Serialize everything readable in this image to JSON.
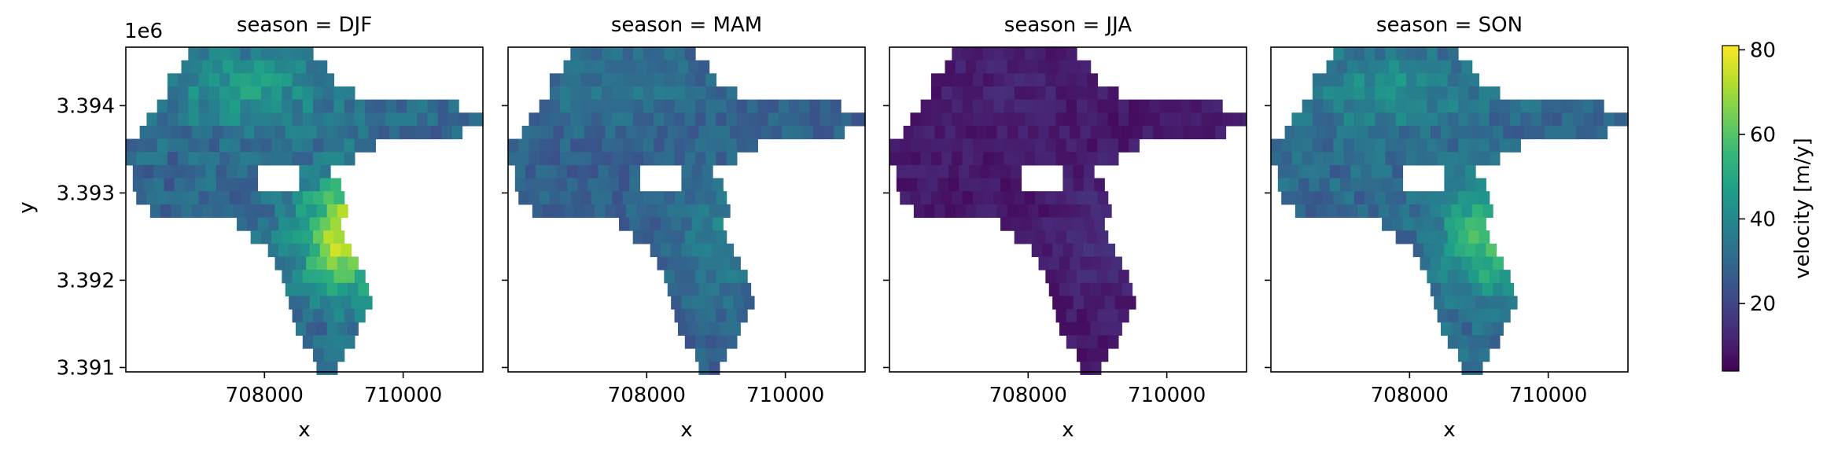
{
  "chart_data": {
    "type": "heatmap",
    "facet_variable": "season",
    "panel_titles": [
      "season = DJF",
      "season = MAM",
      "season = JJA",
      "season = SON"
    ],
    "xlabel": "x",
    "ylabel": "y",
    "x_ticks": [
      "708000",
      "710000"
    ],
    "x_tick_values": [
      708000,
      710000
    ],
    "y_ticks": [
      "3.391",
      "3.392",
      "3.393",
      "3.394"
    ],
    "y_tick_values": [
      3.391,
      3.392,
      3.393,
      3.394
    ],
    "y_offset_text": "1e6",
    "xlim": [
      706000,
      711150
    ],
    "ylim": [
      3390950,
      3394670
    ],
    "cell_size": 150,
    "colormap": "viridis",
    "colorbar": {
      "label": "velocity [m/y]",
      "range": [
        4,
        81
      ],
      "ticks": [
        "20",
        "40",
        "60",
        "80"
      ],
      "tick_values": [
        20,
        40,
        60,
        80
      ]
    },
    "series": [
      {
        "name": "DJF",
        "description": "fast winter flow, maximum ~80 m/y in central trunk",
        "typical_range": [
          20,
          80
        ]
      },
      {
        "name": "MAM",
        "description": "moderate spring flow",
        "typical_range": [
          20,
          45
        ]
      },
      {
        "name": "JJA",
        "description": "slow summer flow",
        "typical_range": [
          5,
          20
        ]
      },
      {
        "name": "SON",
        "description": "moderate-fast autumn flow, peak ~65 m/y in trunk",
        "typical_range": [
          20,
          65
        ]
      }
    ]
  }
}
